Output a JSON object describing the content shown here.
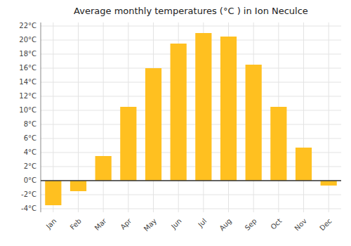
{
  "chart_data": {
    "type": "bar",
    "title": "Average monthly temperatures (°C ) in Ion Neculce",
    "categories": [
      "Jan",
      "Feb",
      "Mar",
      "Apr",
      "May",
      "Jun",
      "Jul",
      "Aug",
      "Sep",
      "Oct",
      "Nov",
      "Dec"
    ],
    "values": [
      -3.5,
      -1.5,
      3.5,
      10.5,
      16.0,
      19.5,
      21.0,
      20.5,
      16.5,
      10.5,
      4.7,
      -0.7
    ],
    "color": "#FFC020",
    "ylim": [
      -4.5,
      22.5
    ],
    "yticks": [
      {
        "value": -4,
        "label": "-4°C"
      },
      {
        "value": -2,
        "label": "-2°C"
      },
      {
        "value": 0,
        "label": "0°C"
      },
      {
        "value": 2,
        "label": "2°C"
      },
      {
        "value": 4,
        "label": "4°C"
      },
      {
        "value": 6,
        "label": "6°C"
      },
      {
        "value": 8,
        "label": "8°C"
      },
      {
        "value": 10,
        "label": "10°C"
      },
      {
        "value": 12,
        "label": "12°C"
      },
      {
        "value": 14,
        "label": "14°C"
      },
      {
        "value": 16,
        "label": "16°C"
      },
      {
        "value": 18,
        "label": "18°C"
      },
      {
        "value": 20,
        "label": "20°C"
      },
      {
        "value": 22,
        "label": "22°C"
      }
    ],
    "grid": true
  }
}
